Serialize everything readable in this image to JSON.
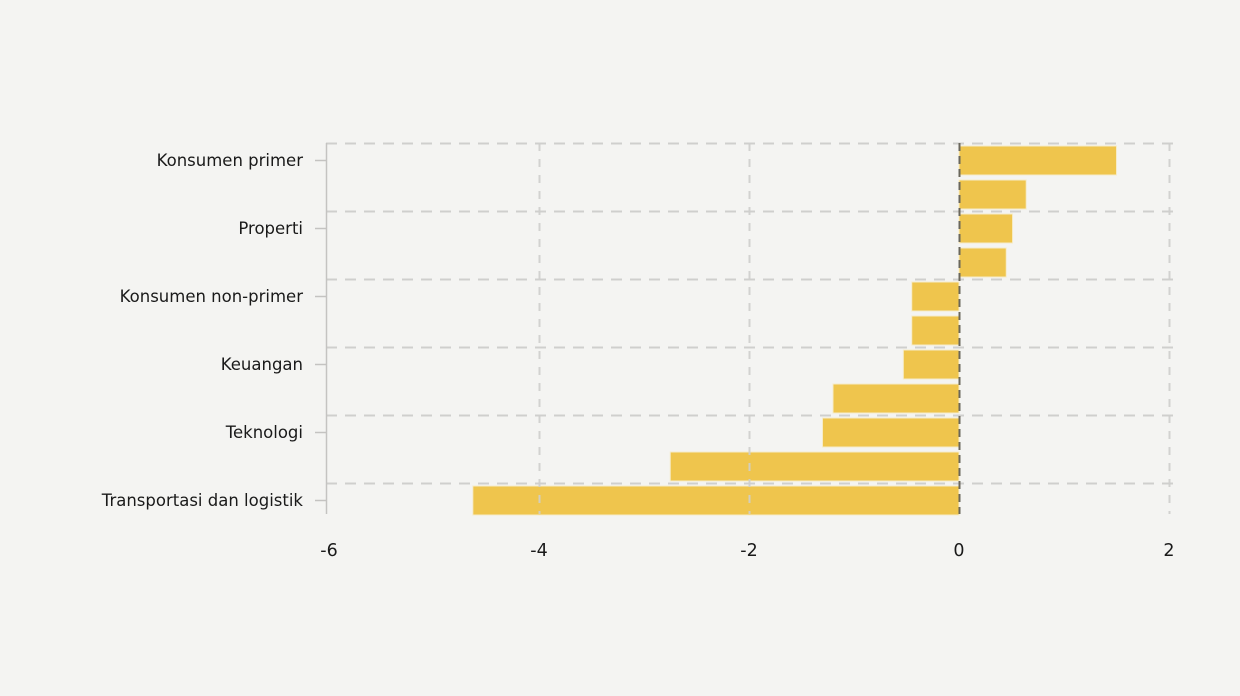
{
  "chart_data": {
    "type": "bar",
    "orientation": "horizontal",
    "title": "",
    "xlabel": "",
    "ylabel": "",
    "xlim": [
      -6.03,
      2.1
    ],
    "xticks": [
      {
        "value": -6,
        "label": "-6"
      },
      {
        "value": -4,
        "label": "-4"
      },
      {
        "value": -2,
        "label": "-2"
      },
      {
        "value": 0,
        "label": "0"
      },
      {
        "value": 2,
        "label": "2"
      }
    ],
    "rows": [
      {
        "label": "Konsumen primer",
        "value": 1.5
      },
      {
        "label": "",
        "value": 0.64
      },
      {
        "label": "Properti",
        "value": 0.51
      },
      {
        "label": "",
        "value": 0.45
      },
      {
        "label": "Konsumen non-primer",
        "value": -0.45
      },
      {
        "label": "",
        "value": -0.45
      },
      {
        "label": "Keuangan",
        "value": -0.53
      },
      {
        "label": "",
        "value": -1.2
      },
      {
        "label": "Teknologi",
        "value": -1.3
      },
      {
        "label": "",
        "value": -2.75
      },
      {
        "label": "Transportasi dan logistik",
        "value": -4.63
      }
    ],
    "legend_position": "none",
    "grid": "dashed",
    "colors": {
      "bar": "#efc54d",
      "bar_edge": "#f6ecc9",
      "background": "#f4f4f2",
      "grid_light": "#cfcfcd",
      "grid_over_bar": "#b9b4a6",
      "zero_line": "#6a675c",
      "spine": "#c4c3c1",
      "text": "#1a1a1a"
    }
  }
}
